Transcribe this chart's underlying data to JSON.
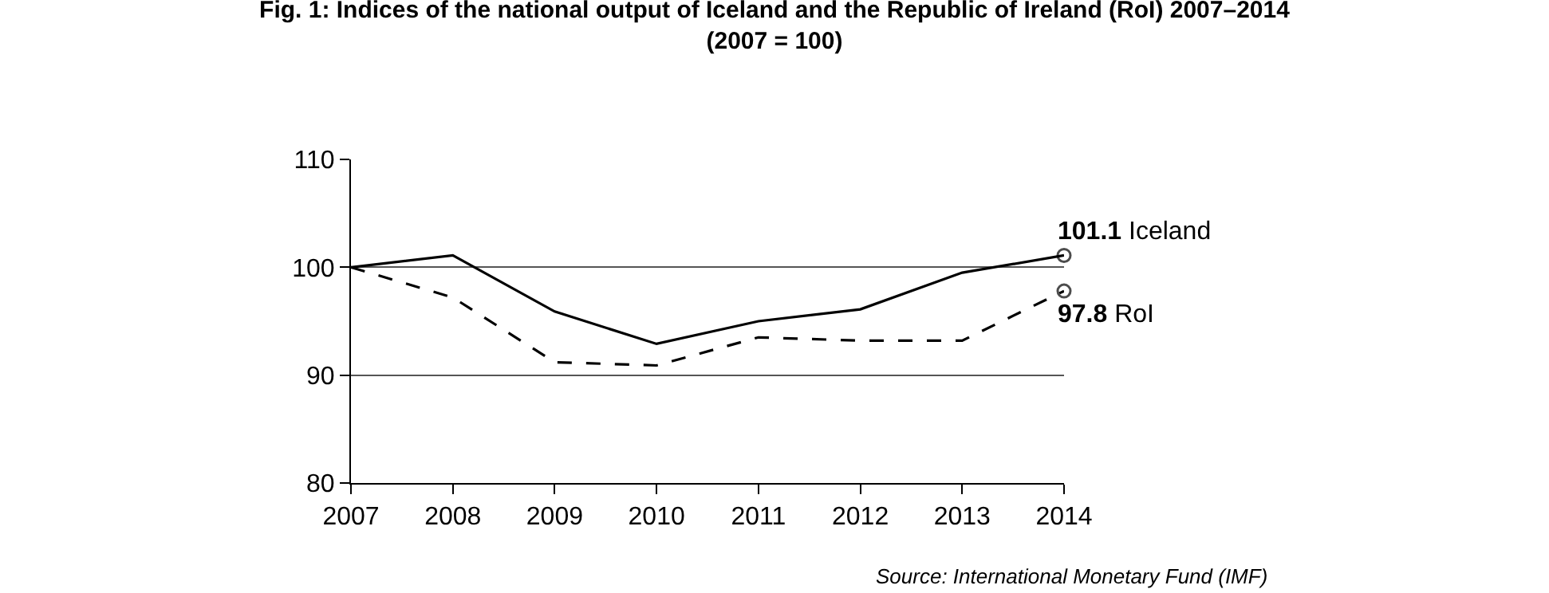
{
  "chart_data": {
    "type": "line",
    "title": "Fig. 1: Indices of the national output of Iceland and the Republic of Ireland (RoI) 2007–2014",
    "subtitle": "(2007 = 100)",
    "x": [
      2007,
      2008,
      2009,
      2010,
      2011,
      2012,
      2013,
      2014
    ],
    "series": [
      {
        "name": "Iceland",
        "color": "#000000",
        "line_style": "solid",
        "values": [
          100,
          101.1,
          95.9,
          92.9,
          95.0,
          96.1,
          99.5,
          101.1
        ],
        "value_labels": [
          null,
          null,
          null,
          null,
          null,
          null,
          null,
          "101.1"
        ]
      },
      {
        "name": "RoI",
        "color": "#000000",
        "line_style": "dashed",
        "values": [
          100,
          97.2,
          91.2,
          90.9,
          93.5,
          93.2,
          93.2,
          97.8
        ],
        "value_labels": [
          null,
          null,
          null,
          null,
          null,
          null,
          null,
          "97.8"
        ]
      }
    ],
    "xlim": [
      2007,
      2014
    ],
    "xticks": [
      2007,
      2008,
      2009,
      2010,
      2011,
      2012,
      2013,
      2014
    ],
    "ylim": [
      80,
      110
    ],
    "yticks": [
      80,
      90,
      100,
      110
    ],
    "grid": "y",
    "legend": false,
    "annotations": [
      "Source: International Monetary Fund (IMF)"
    ]
  }
}
